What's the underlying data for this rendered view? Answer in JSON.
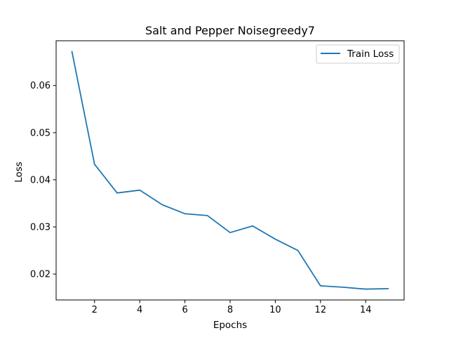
{
  "chart_data": {
    "type": "line",
    "title": "Salt and Pepper Noisegreedy7",
    "xlabel": "Epochs",
    "ylabel": "Loss",
    "xlim": [
      0.3,
      15.7
    ],
    "ylim": [
      0.0145,
      0.0695
    ],
    "xticks": [
      2,
      4,
      6,
      8,
      10,
      12,
      14
    ],
    "yticks": [
      0.02,
      0.03,
      0.04,
      0.05,
      0.06
    ],
    "ytick_labels": [
      "0.02",
      "0.03",
      "0.04",
      "0.05",
      "0.06"
    ],
    "grid": false,
    "legend_position": "upper right",
    "series": [
      {
        "name": "Train Loss",
        "color": "#1f77b4",
        "x": [
          1,
          2,
          3,
          4,
          5,
          6,
          7,
          8,
          9,
          10,
          11,
          12,
          13,
          14,
          15
        ],
        "y": [
          0.0672,
          0.0433,
          0.0372,
          0.0378,
          0.0347,
          0.0328,
          0.0324,
          0.0288,
          0.0302,
          0.0274,
          0.025,
          0.0175,
          0.0172,
          0.0168,
          0.0169
        ]
      }
    ]
  }
}
